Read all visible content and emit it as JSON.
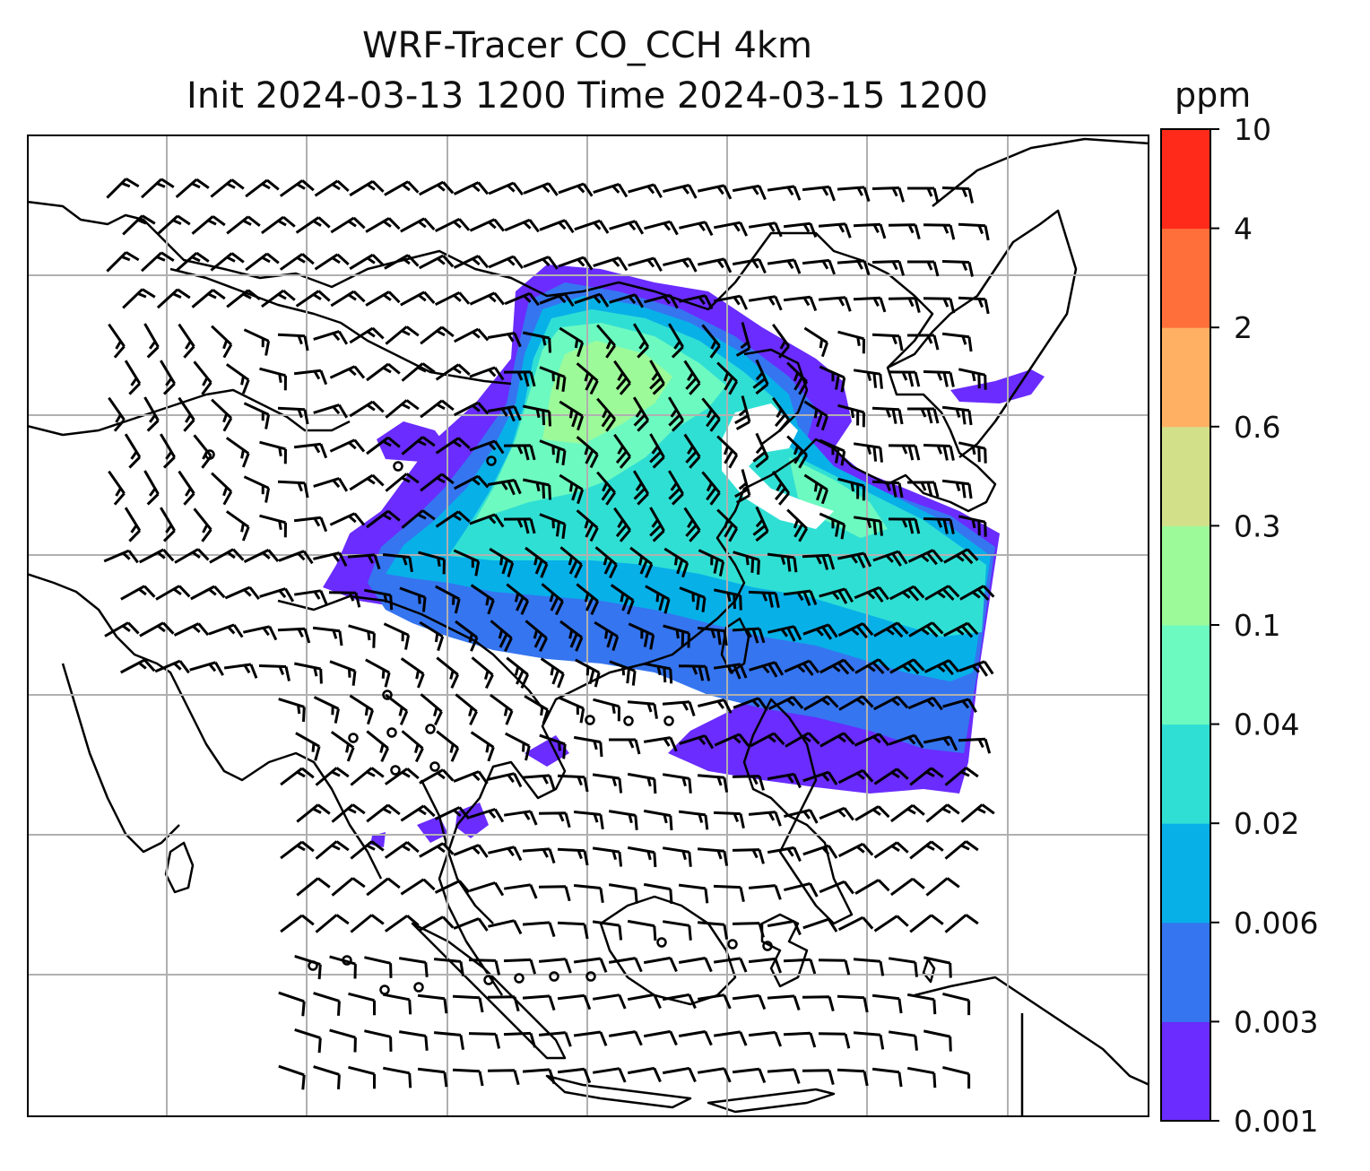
{
  "title": {
    "line1": "WRF-Tracer CO_CCH 4km",
    "line2": "Init 2024-03-13 1200 Time 2024-03-15 1200"
  },
  "colorbar": {
    "unit": "ppm",
    "levels": [
      "0.001",
      "0.003",
      "0.006",
      "0.02",
      "0.04",
      "0.1",
      "0.3",
      "0.6",
      "2",
      "4",
      "10"
    ],
    "colors": [
      "#6a2cff",
      "#3575f0",
      "#08b0e8",
      "#30dfd4",
      "#6dfac0",
      "#9dfa99",
      "#d2e08a",
      "#ffb062",
      "#ff6f3a",
      "#ff2a1a"
    ]
  },
  "map": {
    "land_outline_color": "#000000",
    "grid_color": "#b0b0b0",
    "wind_barb_color": "#000000"
  }
}
